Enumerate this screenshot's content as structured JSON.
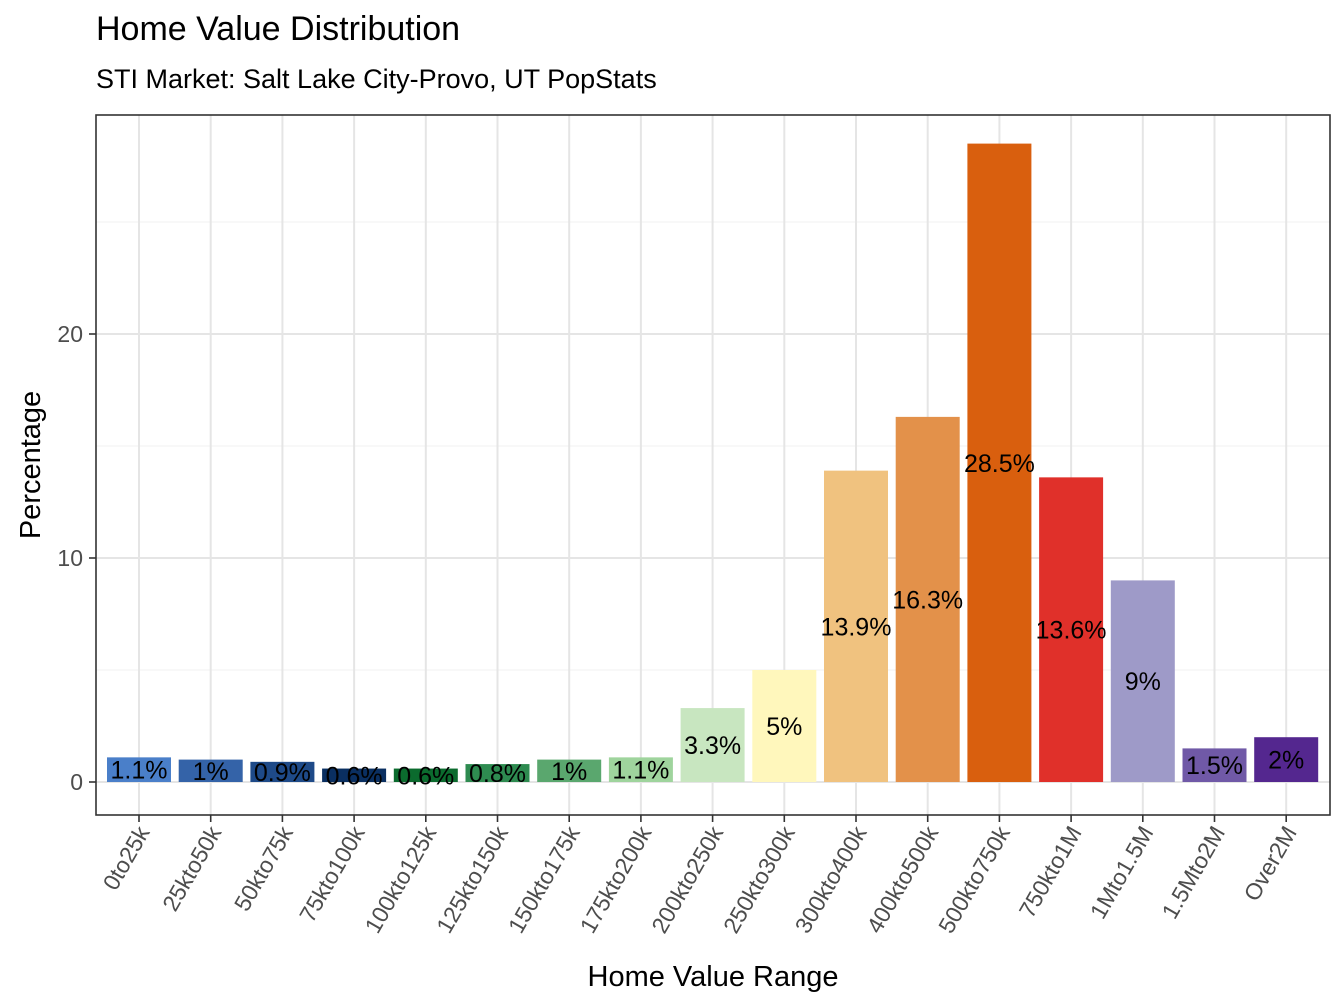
{
  "chart_data": {
    "type": "bar",
    "title": "Home Value Distribution",
    "subtitle": "STI Market: Salt Lake City-Provo, UT PopStats",
    "xlabel": "Home Value Range",
    "ylabel": "Percentage",
    "ylim": [
      -1.5,
      29.9
    ],
    "yticks": [
      0,
      10,
      20
    ],
    "grid": true,
    "legend": "none",
    "categories": [
      "0to25k",
      "25kto50k",
      "50kto75k",
      "75kto100k",
      "100kto125k",
      "125kto150k",
      "150kto175k",
      "175kto200k",
      "200kto250k",
      "250kto300k",
      "300kto400k",
      "400kto500k",
      "500kto750k",
      "750kto1M",
      "1Mto1.5M",
      "1.5Mto2M",
      "Over2M"
    ],
    "values": [
      1.1,
      1,
      0.9,
      0.6,
      0.6,
      0.8,
      1,
      1.1,
      3.3,
      5,
      13.9,
      16.3,
      28.5,
      13.6,
      9,
      1.5,
      2
    ],
    "labels": [
      "1.1%",
      "1%",
      "0.9%",
      "0.6%",
      "0.6%",
      "0.8%",
      "1%",
      "1.1%",
      "3.3%",
      "5%",
      "13.9%",
      "16.3%",
      "28.5%",
      "13.6%",
      "9%",
      "1.5%",
      "2%"
    ],
    "colors": [
      "#4A7FC9",
      "#3463A8",
      "#1E4A88",
      "#0A2F61",
      "#0B6B2E",
      "#2E8B50",
      "#5AA76E",
      "#9FD49D",
      "#C8E6C0",
      "#FFF7BC",
      "#F0C27F",
      "#E3914A",
      "#D95F0E",
      "#E0302A",
      "#9E9AC8",
      "#7059A7",
      "#54278F"
    ]
  }
}
